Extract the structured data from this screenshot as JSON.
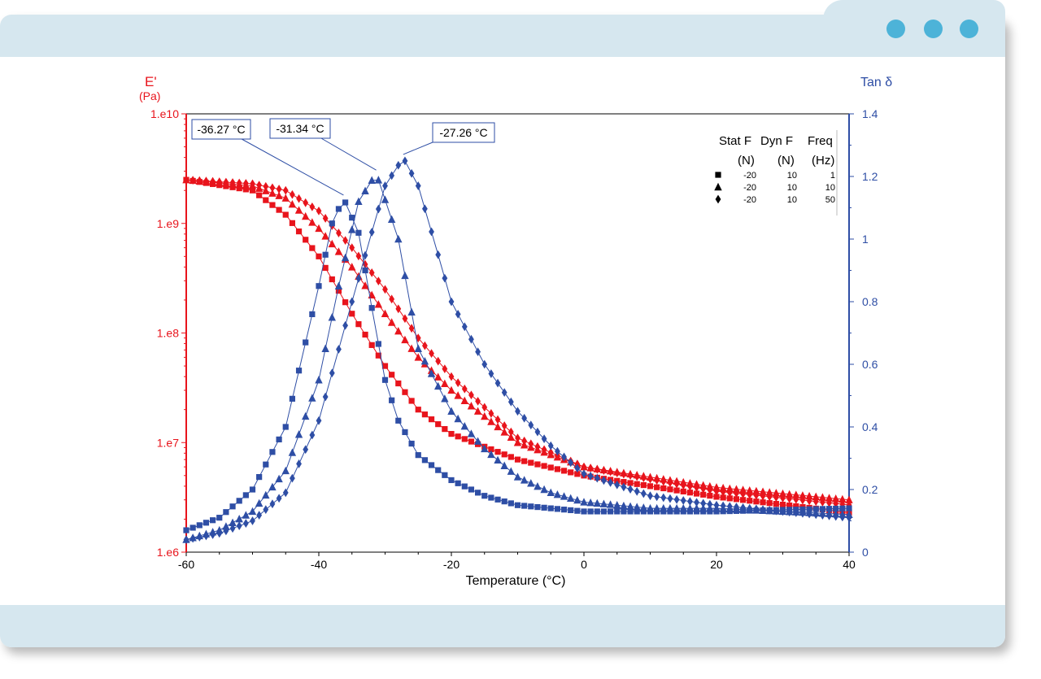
{
  "window": {
    "accent_color": "#d6e7ef",
    "dot_color": "#4db3d8",
    "dots": [
      "dot-1",
      "dot-2",
      "dot-3"
    ]
  },
  "chart_data": {
    "type": "scatter",
    "xlabel": "Temperature (°C)",
    "xlim": [
      -60,
      40
    ],
    "x_ticks": [
      "-60",
      "-40",
      "-20",
      "0",
      "20",
      "40"
    ],
    "left_axis": {
      "label": "E'",
      "unit": "(Pa)",
      "scale": "log",
      "ylim": [
        1000000,
        10000000000
      ],
      "ticks": [
        "1.e6",
        "1.e7",
        "1.e8",
        "1.e9",
        "1.e10"
      ],
      "color": "#e8141c"
    },
    "right_axis": {
      "label": "Tan δ",
      "ylim": [
        0,
        1.4
      ],
      "ticks": [
        "0",
        "0.2",
        "0.4",
        "0.6",
        "0.8",
        "1",
        "1.2",
        "1.4"
      ],
      "color": "#2e4ea5"
    },
    "grid": false,
    "legend": {
      "position": "top-right",
      "headers": [
        "Stat F",
        "Dyn F",
        "Freq"
      ],
      "units": [
        "(N)",
        "(N)",
        "(Hz)"
      ],
      "rows": [
        {
          "marker": "square",
          "stat": "-20",
          "dyn": "10",
          "freq": "1"
        },
        {
          "marker": "triangle",
          "stat": "-20",
          "dyn": "10",
          "freq": "10"
        },
        {
          "marker": "diamond",
          "stat": "-20",
          "dyn": "10",
          "freq": "50"
        }
      ]
    },
    "annotations": [
      {
        "text": "-36.27 °C",
        "x": -36.27,
        "y": 1.13
      },
      {
        "text": "-31.34 °C",
        "x": -31.34,
        "y": 1.21
      },
      {
        "text": "-27.26 °C",
        "x": -27.26,
        "y": 1.26
      }
    ],
    "series": [
      {
        "axis": "left",
        "marker": "square",
        "x_range": [
          -60,
          40
        ],
        "x_step": 1.0,
        "x": [
          -60,
          -50,
          -45,
          -40,
          -35,
          -30,
          -25,
          -20,
          -10,
          0,
          20,
          40
        ],
        "y": [
          2500000000,
          2000000000,
          1200000000,
          500000000,
          150000000,
          50000000,
          20000000,
          12000000,
          7000000,
          5000000,
          3200000,
          2300000
        ]
      },
      {
        "axis": "left",
        "marker": "triangle",
        "x_range": [
          -60,
          40
        ],
        "x_step": 1.0,
        "x": [
          -60,
          -50,
          -45,
          -40,
          -35,
          -30,
          -25,
          -20,
          -10,
          0,
          20,
          40
        ],
        "y": [
          2500000000,
          2200000000,
          1700000000,
          900000000,
          400000000,
          150000000,
          60000000,
          30000000,
          10000000,
          6000000,
          3900000,
          3000000
        ]
      },
      {
        "axis": "left",
        "marker": "diamond",
        "x_range": [
          -60,
          40
        ],
        "x_step": 1.0,
        "x": [
          -60,
          -50,
          -45,
          -40,
          -35,
          -30,
          -25,
          -20,
          -10,
          0,
          20,
          40
        ],
        "y": [
          2500000000,
          2300000000,
          2000000000,
          1300000000,
          600000000,
          250000000,
          90000000,
          40000000,
          11000000,
          6000000,
          3600000,
          2700000
        ]
      },
      {
        "axis": "right",
        "marker": "square",
        "x_range": [
          -60,
          40
        ],
        "x_step": 1.0,
        "x": [
          -60,
          -55,
          -50,
          -45,
          -40,
          -38,
          -36.27,
          -34,
          -32,
          -30,
          -28,
          -25,
          -20,
          -15,
          -10,
          -5,
          0,
          20,
          40
        ],
        "y": [
          0.07,
          0.11,
          0.2,
          0.4,
          0.85,
          1.05,
          1.13,
          1.02,
          0.78,
          0.55,
          0.42,
          0.31,
          0.23,
          0.18,
          0.15,
          0.14,
          0.13,
          0.13,
          0.14
        ]
      },
      {
        "axis": "right",
        "marker": "triangle",
        "x_range": [
          -60,
          40
        ],
        "x_step": 1.0,
        "x": [
          -60,
          -55,
          -50,
          -45,
          -40,
          -37,
          -34,
          -31.34,
          -28,
          -25,
          -20,
          -15,
          -10,
          -5,
          0,
          10,
          20,
          40
        ],
        "y": [
          0.04,
          0.07,
          0.13,
          0.26,
          0.55,
          0.85,
          1.12,
          1.21,
          1.0,
          0.65,
          0.45,
          0.33,
          0.24,
          0.19,
          0.16,
          0.14,
          0.14,
          0.12
        ]
      },
      {
        "axis": "right",
        "marker": "diamond",
        "x_range": [
          -60,
          40
        ],
        "x_step": 1.0,
        "x": [
          -60,
          -55,
          -50,
          -45,
          -40,
          -35,
          -30,
          -27.26,
          -25,
          -22,
          -20,
          -15,
          -10,
          -5,
          0,
          10,
          20,
          40
        ],
        "y": [
          0.04,
          0.06,
          0.1,
          0.19,
          0.42,
          0.8,
          1.17,
          1.26,
          1.17,
          0.95,
          0.8,
          0.6,
          0.45,
          0.34,
          0.25,
          0.18,
          0.15,
          0.11
        ]
      }
    ]
  }
}
